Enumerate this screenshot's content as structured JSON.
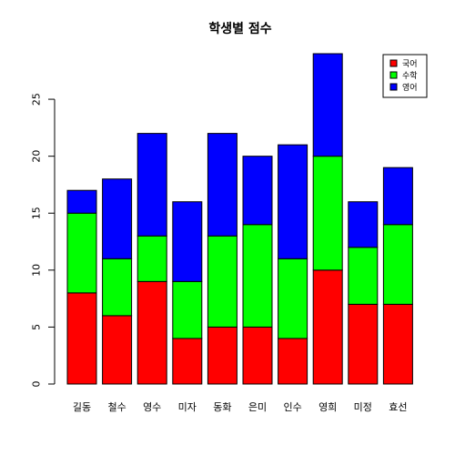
{
  "chart_data": {
    "type": "bar",
    "stacked": true,
    "title": "학생별 점수",
    "xlabel": "",
    "ylabel": "",
    "categories": [
      "길동",
      "철수",
      "영수",
      "미자",
      "동화",
      "은미",
      "인수",
      "영희",
      "미정",
      "효선"
    ],
    "series": [
      {
        "name": "국어",
        "color": "#ff0000",
        "values": [
          8,
          6,
          9,
          4,
          5,
          5,
          4,
          10,
          7,
          7
        ]
      },
      {
        "name": "수학",
        "color": "#00ff00",
        "values": [
          7,
          5,
          4,
          5,
          8,
          9,
          7,
          10,
          5,
          7
        ]
      },
      {
        "name": "영어",
        "color": "#0000ff",
        "values": [
          2,
          7,
          9,
          7,
          9,
          6,
          10,
          9,
          4,
          5
        ]
      }
    ],
    "ylim": [
      0,
      29
    ],
    "yticks": [
      0,
      5,
      10,
      15,
      20,
      25
    ],
    "grid": false,
    "legend_position": "top-right"
  }
}
